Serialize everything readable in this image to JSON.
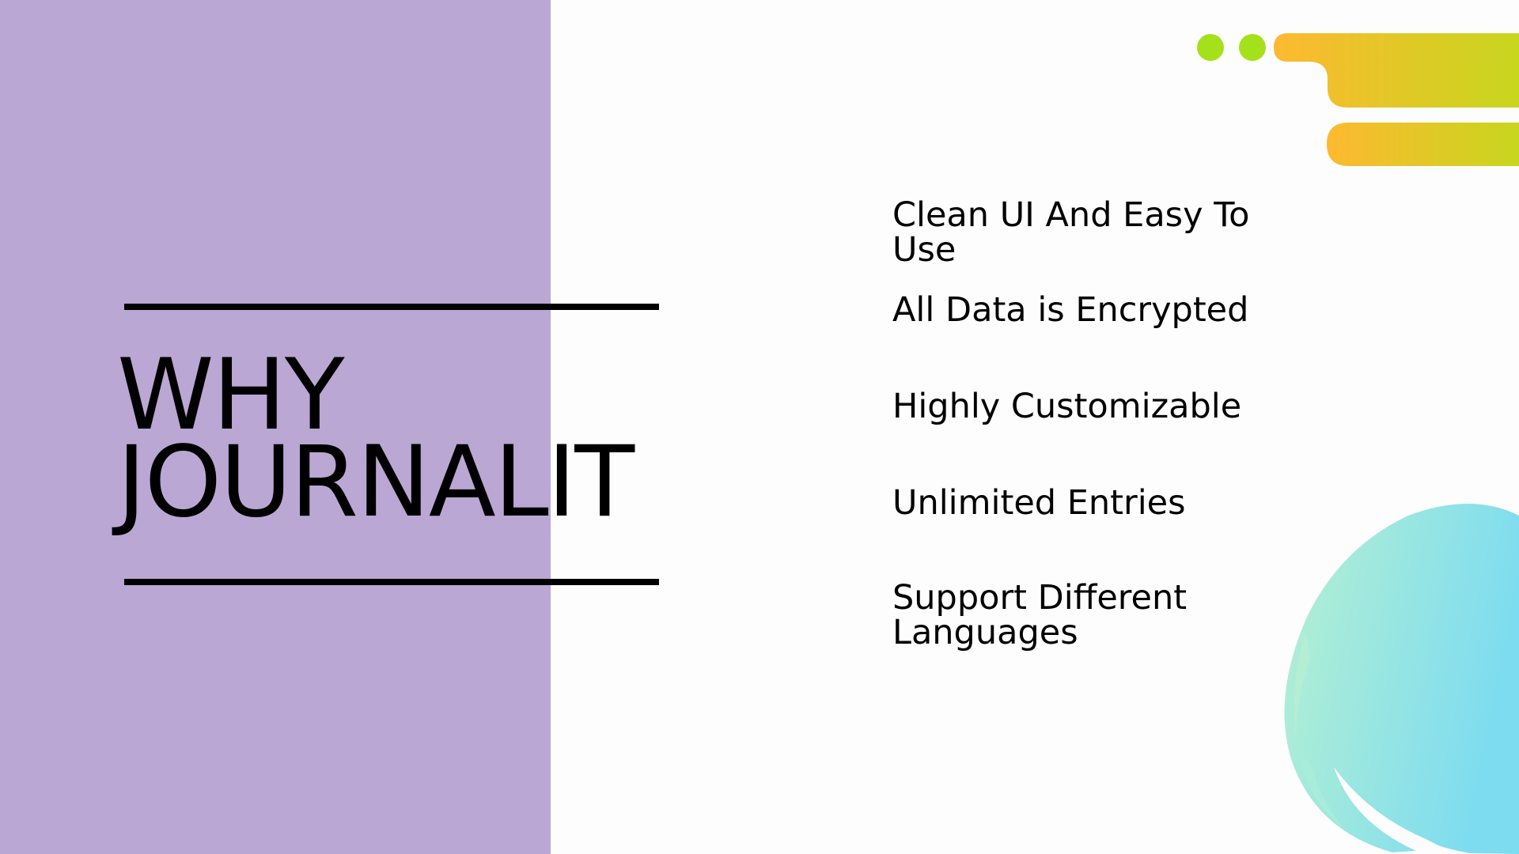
{
  "title": {
    "line1": "WHY",
    "line2": "JOURNALIT"
  },
  "features": [
    {
      "label": "Clean UI And Easy To Use"
    },
    {
      "label": "All Data is Encrypted"
    },
    {
      "label": "Highly Customizable"
    },
    {
      "label": "Unlimited Entries"
    },
    {
      "label": "Support Different Languages"
    }
  ],
  "colors": {
    "panel": "#baa7d3",
    "background": "#fdfdfd",
    "dots": "#a4e11a",
    "stripe_start": "#fdb930",
    "stripe_end": "#c8d61e",
    "circle_start": "#b6f0d2",
    "circle_end": "#7ddcf0"
  }
}
